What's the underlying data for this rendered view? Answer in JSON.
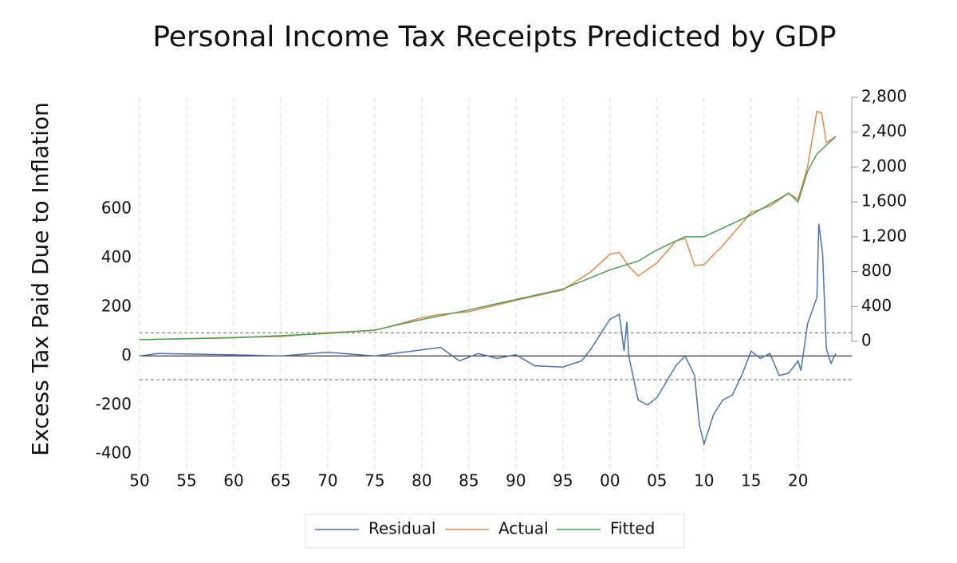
{
  "chart_data": {
    "type": "line",
    "title": "Personal Income Tax Receipts Predicted by GDP",
    "ylabel": "Excess Tax Paid Due to Inflation",
    "xlim": [
      1950,
      2025.7
    ],
    "xticks": [
      {
        "value": 1950,
        "label": "50"
      },
      {
        "value": 1955,
        "label": "55"
      },
      {
        "value": 1960,
        "label": "60"
      },
      {
        "value": 1965,
        "label": "65"
      },
      {
        "value": 1970,
        "label": "70"
      },
      {
        "value": 1975,
        "label": "75"
      },
      {
        "value": 1980,
        "label": "80"
      },
      {
        "value": 1985,
        "label": "85"
      },
      {
        "value": 1990,
        "label": "90"
      },
      {
        "value": 1995,
        "label": "95"
      },
      {
        "value": 2000,
        "label": "00"
      },
      {
        "value": 2005,
        "label": "05"
      },
      {
        "value": 2010,
        "label": "10"
      },
      {
        "value": 2015,
        "label": "15"
      },
      {
        "value": 2020,
        "label": "20"
      }
    ],
    "ylim": [
      -468,
      1057
    ],
    "yticks": [
      -400,
      -200,
      0,
      200,
      400,
      600
    ],
    "y2lim": [
      -1482,
      2800
    ],
    "y2ticks": [
      0,
      {
        "value": 400,
        "label": "400"
      },
      {
        "value": 800,
        "label": "800"
      },
      {
        "value": 1200,
        "label": "1,200"
      },
      {
        "value": 1600,
        "label": "1,600"
      },
      {
        "value": 2000,
        "label": "2,000"
      },
      {
        "value": 2400,
        "label": "2,400"
      },
      {
        "value": 2800,
        "label": "2,800"
      }
    ],
    "reference_lines": [
      95,
      -97
    ],
    "grid": true,
    "legend": "bottom",
    "series": [
      {
        "name": "Residual",
        "color": "#4a72b0",
        "x": [
          1950,
          1952,
          1960,
          1965,
          1970,
          1975,
          1980,
          1982,
          1984,
          1986,
          1988,
          1990,
          1992,
          1995,
          1997,
          1998,
          2000,
          2001,
          2001.5,
          2001.8,
          2002,
          2003,
          2004,
          2005,
          2007,
          2008,
          2009,
          2009.5,
          2010,
          2011,
          2012,
          2013,
          2014,
          2015,
          2016,
          2017,
          2018,
          2019,
          2020,
          2020.3,
          2021,
          2022,
          2022.2,
          2022.6,
          2023,
          2023.5,
          2024
        ],
        "values": [
          0,
          10,
          5,
          0,
          15,
          0,
          25,
          35,
          -20,
          10,
          -10,
          5,
          -40,
          -45,
          -20,
          30,
          150,
          170,
          20,
          140,
          0,
          -180,
          -200,
          -170,
          -40,
          0,
          -80,
          -280,
          -360,
          -240,
          -180,
          -160,
          -80,
          20,
          -10,
          10,
          -80,
          -70,
          -20,
          -60,
          130,
          240,
          540,
          420,
          30,
          -30,
          10
        ]
      },
      {
        "name": "Actual",
        "color": "#e08a4a",
        "x": [
          1950,
          1955,
          1960,
          1965,
          1970,
          1975,
          1980,
          1982,
          1985,
          1990,
          1995,
          1998,
          2000,
          2001,
          2002,
          2003,
          2005,
          2007,
          2008,
          2009,
          2010,
          2012,
          2014,
          2015,
          2017,
          2019,
          2020,
          2021,
          2022,
          2022.5,
          2023,
          2024
        ],
        "values": [
          20,
          30,
          45,
          55,
          100,
          125,
          270,
          310,
          340,
          470,
          590,
          800,
          1000,
          1020,
          860,
          750,
          900,
          1150,
          1180,
          870,
          880,
          1100,
          1350,
          1480,
          1550,
          1700,
          1630,
          2000,
          2640,
          2620,
          2280,
          2350
        ]
      },
      {
        "name": "Fitted",
        "color": "#4aa052",
        "x": [
          1950,
          1960,
          1970,
          1975,
          1980,
          1985,
          1990,
          1995,
          2000,
          2003,
          2005,
          2008,
          2010,
          2015,
          2019,
          2020,
          2021,
          2022,
          2024
        ],
        "values": [
          20,
          40,
          90,
          130,
          250,
          360,
          480,
          600,
          820,
          920,
          1050,
          1200,
          1200,
          1450,
          1700,
          1600,
          1950,
          2150,
          2350
        ]
      }
    ]
  }
}
